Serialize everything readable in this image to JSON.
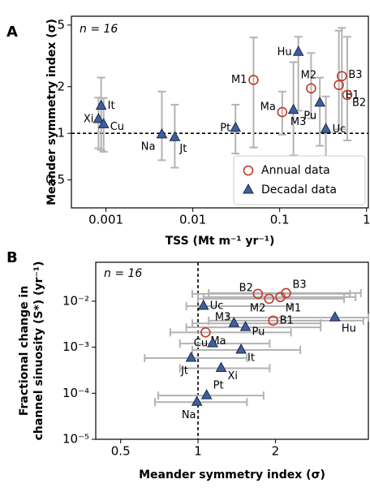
{
  "chart_data": [
    {
      "type": "scatter",
      "panel_label": "A",
      "annotation": "n = 16",
      "x_label": "TSS (Mt m⁻¹ yr⁻¹)",
      "y_label": "Meander symmetry index (σ)",
      "xscale": "log",
      "yscale": "log",
      "xlim": [
        0.0004,
        1.05
      ],
      "ylim": [
        0.33,
        5.7
      ],
      "xticks": [
        0.001,
        0.01,
        0.1,
        1
      ],
      "yticks": [
        0.5,
        1,
        2,
        5
      ],
      "reference_line": {
        "axis": "y",
        "value": 1
      },
      "error_bar_color": "#b3b3b3",
      "legend": "lower right",
      "series": [
        {
          "name": "Annual data",
          "marker": "circle",
          "color": "#c0392b",
          "labels": [
            "M1",
            "Ma",
            "M2",
            "B1",
            "B3",
            "B2"
          ],
          "x": [
            0.05,
            0.107,
            0.23,
            0.48,
            0.52,
            0.6
          ],
          "values": [
            2.21,
            1.37,
            1.95,
            2.05,
            2.34,
            1.77
          ],
          "y_lower": [
            0.81,
            0.98,
            1.25,
            1.06,
            1.06,
            0.9
          ],
          "y_upper": [
            4.16,
            1.86,
            3.3,
            4.6,
            4.8,
            4.2
          ]
        },
        {
          "name": "Decadal data",
          "marker": "triangle",
          "color": "#3f5f9e",
          "labels": [
            "It",
            "Xi",
            "Cu",
            "Na",
            "Jt",
            "Pt",
            "Hu",
            "M3",
            "Pu",
            "Uc"
          ],
          "x": [
            0.00088,
            0.00082,
            0.00094,
            0.0044,
            0.0062,
            0.031,
            0.164,
            0.144,
            0.29,
            0.34
          ],
          "values": [
            1.5,
            1.23,
            1.14,
            0.98,
            0.94,
            1.08,
            3.34,
            1.41,
            1.57,
            1.06
          ],
          "y_lower": [
            0.78,
            0.8,
            0.76,
            0.67,
            0.6,
            0.74,
            1.4,
            0.72,
            0.83,
            0.7
          ],
          "y_upper": [
            2.29,
            1.7,
            1.69,
            1.86,
            1.53,
            1.53,
            4.2,
            2.88,
            2.29,
            1.73
          ]
        }
      ]
    },
    {
      "type": "scatter",
      "panel_label": "B",
      "annotation": "n = 16",
      "x_label": "Meander symmetry index (σ)",
      "y_label": [
        "Fractional change in",
        "channel sinuosity (S*) (yr⁻¹)"
      ],
      "xscale": "log",
      "yscale": "log",
      "xlim": [
        0.4,
        4.6
      ],
      "ylim": [
        1e-05,
        0.07
      ],
      "xticks": [
        0.5,
        1,
        2,
        5
      ],
      "yticks": [
        {
          "value": 1e-05,
          "label": "10⁻⁵"
        },
        {
          "value": 0.0001,
          "label": "10⁻⁴"
        },
        {
          "value": 0.001,
          "label": "10⁻³"
        },
        {
          "value": 0.01,
          "label": "10⁻²"
        }
      ],
      "reference_line": {
        "axis": "x",
        "value": 1
      },
      "error_bar_color": "#b3b3b3",
      "series": [
        {
          "marker": "circle",
          "color": "#c0392b",
          "labels": [
            "B2",
            "M2",
            "M1",
            "B3",
            "B1",
            "Ma"
          ],
          "x": [
            1.71,
            1.89,
            2.09,
            2.2,
            1.96,
            1.07
          ],
          "values": [
            0.0144,
            0.0113,
            0.0123,
            0.015,
            0.00377,
            0.0021
          ],
          "x_lower": [
            0.95,
            1.0,
            1.05,
            1.1,
            1.1,
            0.78
          ],
          "x_upper": [
            3.9,
            3.7,
            4.1,
            4.3,
            4.4,
            2.3
          ]
        },
        {
          "marker": "triangle",
          "color": "#3f5f9e",
          "labels": [
            "Uc",
            "M3",
            "Pu",
            "Hu",
            "Cu",
            "It",
            "Jt",
            "Xi",
            "Pt",
            "Na"
          ],
          "x": [
            1.05,
            1.38,
            1.53,
            3.41,
            1.14,
            1.47,
            0.94,
            1.23,
            1.08,
            0.99
          ],
          "values": [
            0.0078,
            0.0033,
            0.0027,
            0.0044,
            0.0012,
            0.00087,
            0.00058,
            0.00035,
            8.9e-05,
            6.4e-05
          ],
          "x_lower": [
            0.9,
            0.95,
            0.9,
            1.3,
            0.85,
            0.95,
            0.62,
            0.85,
            0.7,
            0.68
          ],
          "x_upper": [
            2.3,
            3.0,
            3.0,
            4.6,
            1.9,
            2.5,
            1.55,
            1.9,
            1.8,
            1.55
          ]
        }
      ]
    }
  ]
}
